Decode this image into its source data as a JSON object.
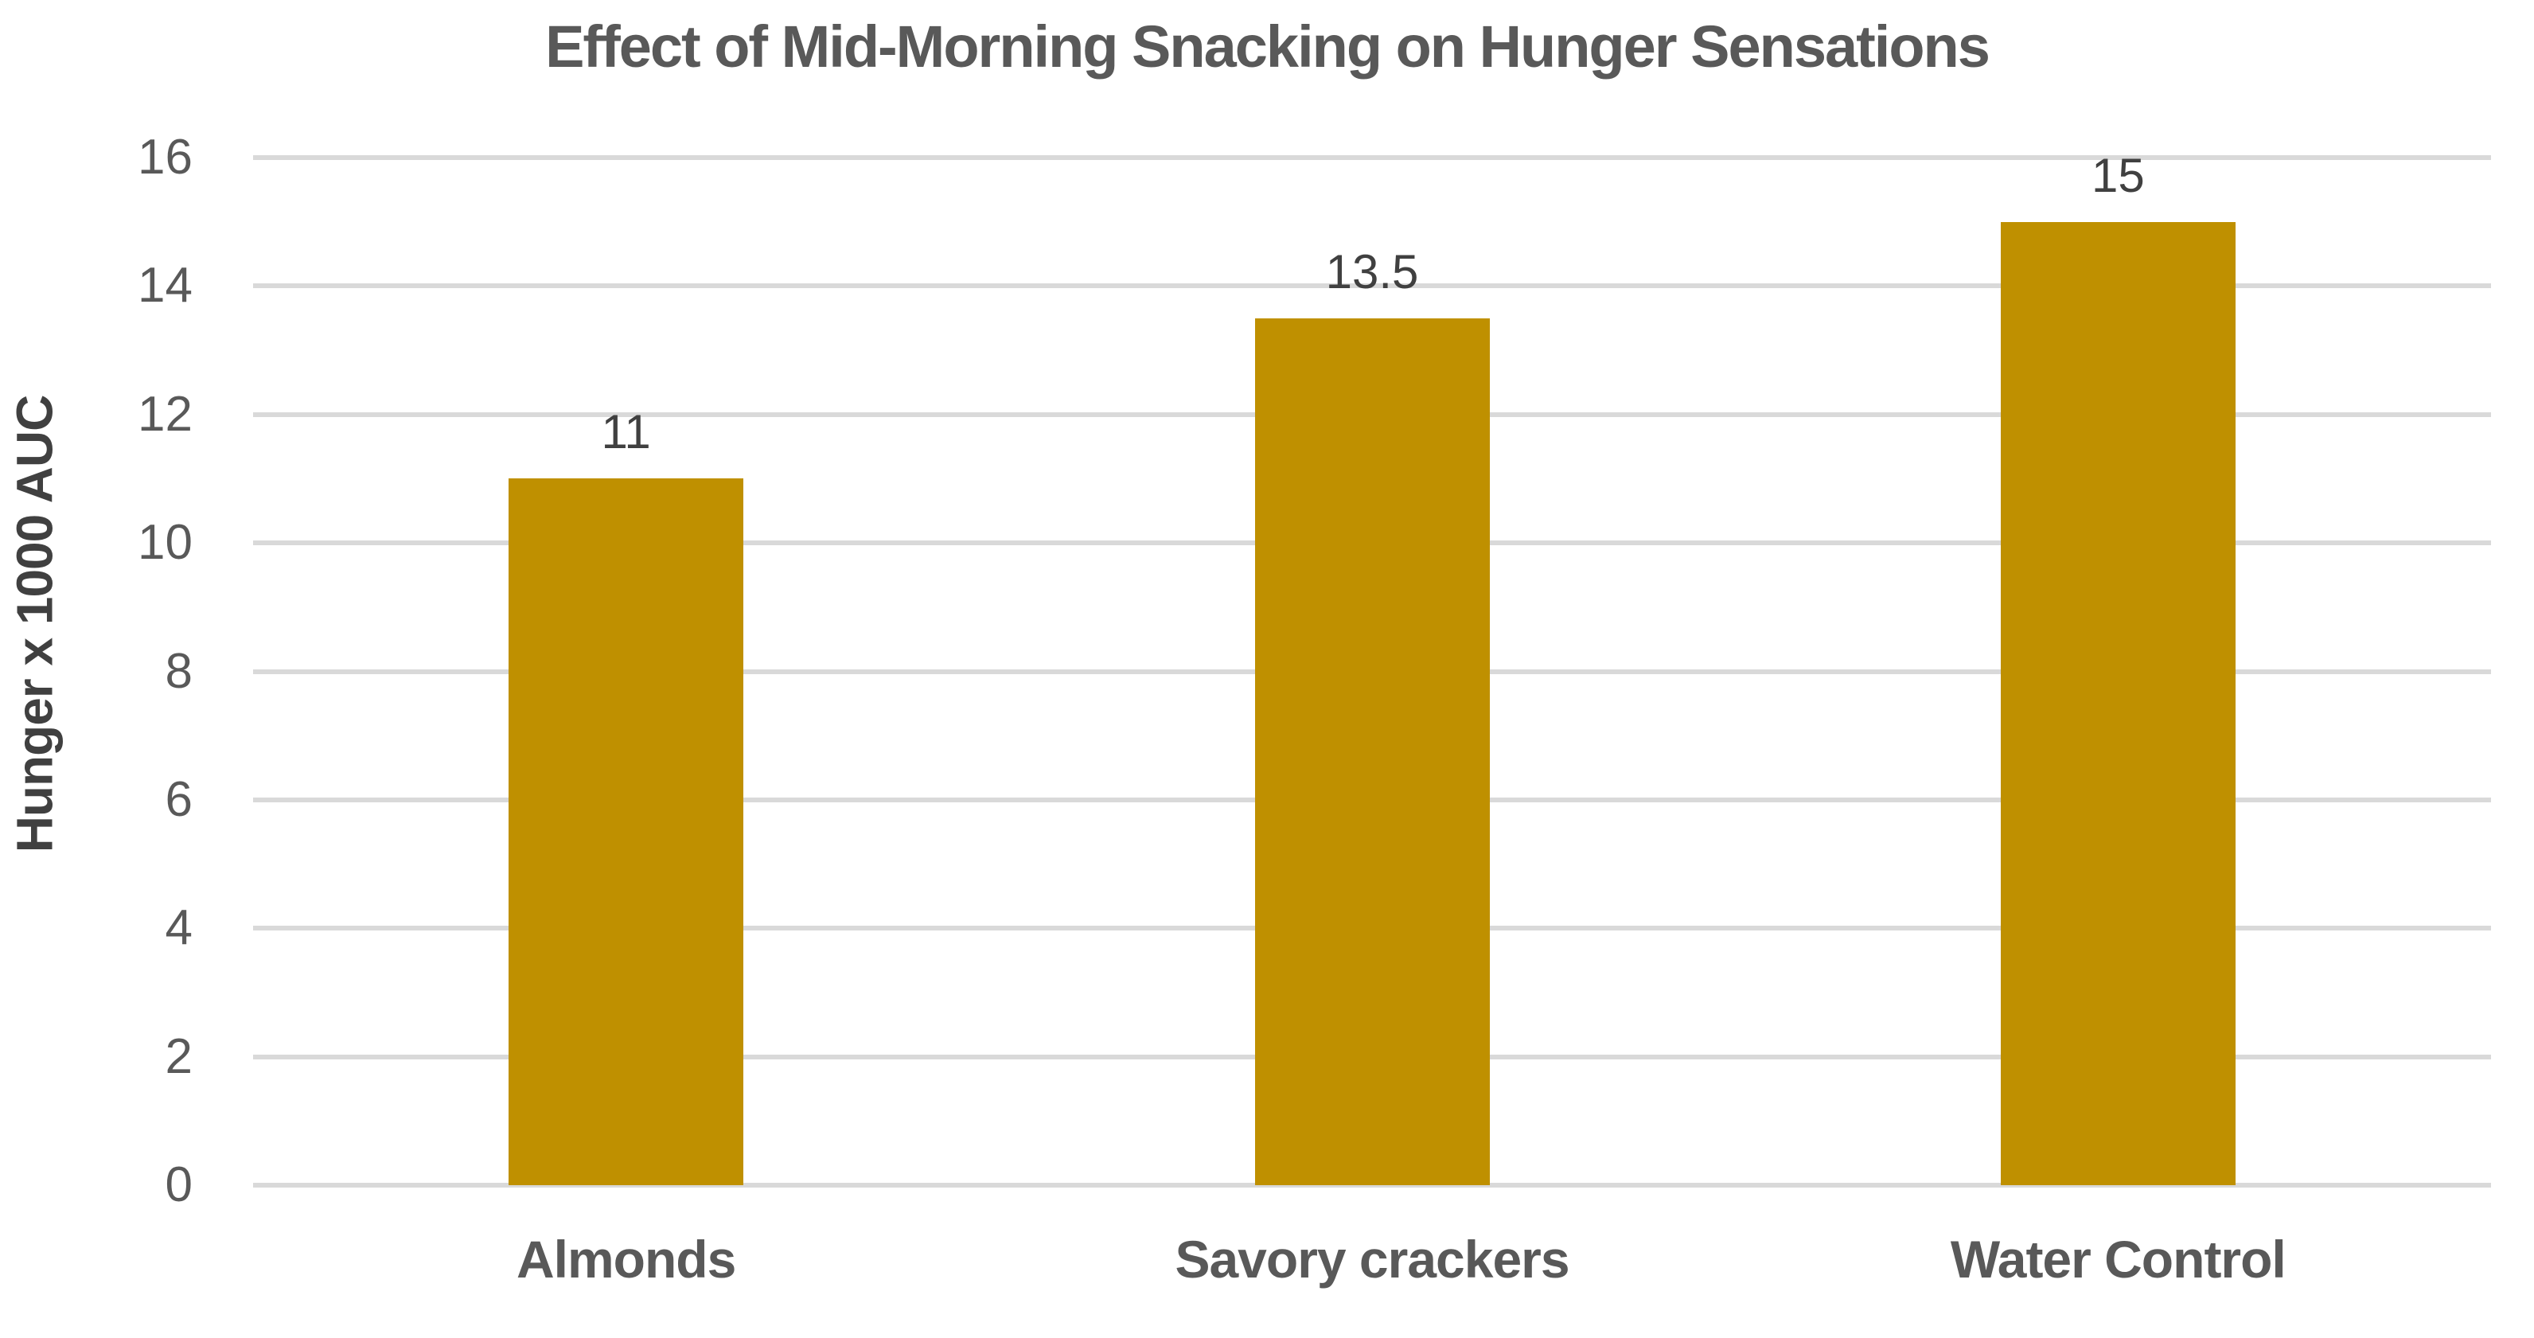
{
  "chart_data": {
    "type": "bar",
    "title": "Effect of Mid-Morning Snacking on Hunger Sensations",
    "categories": [
      "Almonds",
      "Savory crackers",
      "Water Control"
    ],
    "values": [
      11,
      13.5,
      15
    ],
    "data_labels": [
      "11",
      "13.5",
      "15"
    ],
    "xlabel": "",
    "ylabel": "Hunger x 1000 AUC",
    "ylim": [
      0,
      16
    ],
    "ytick_step": 2,
    "ytick_labels": [
      "0",
      "2",
      "4",
      "6",
      "8",
      "10",
      "12",
      "14",
      "16"
    ],
    "grid": true,
    "legend": "none",
    "colors": {
      "bar": "#BF9000",
      "gridline": "#D9D9D9",
      "tick_label": "#595959",
      "title": "#595959",
      "category_label": "#595959",
      "data_label": "#404040",
      "axis_title": "#404040",
      "background": "#FFFFFF"
    }
  }
}
